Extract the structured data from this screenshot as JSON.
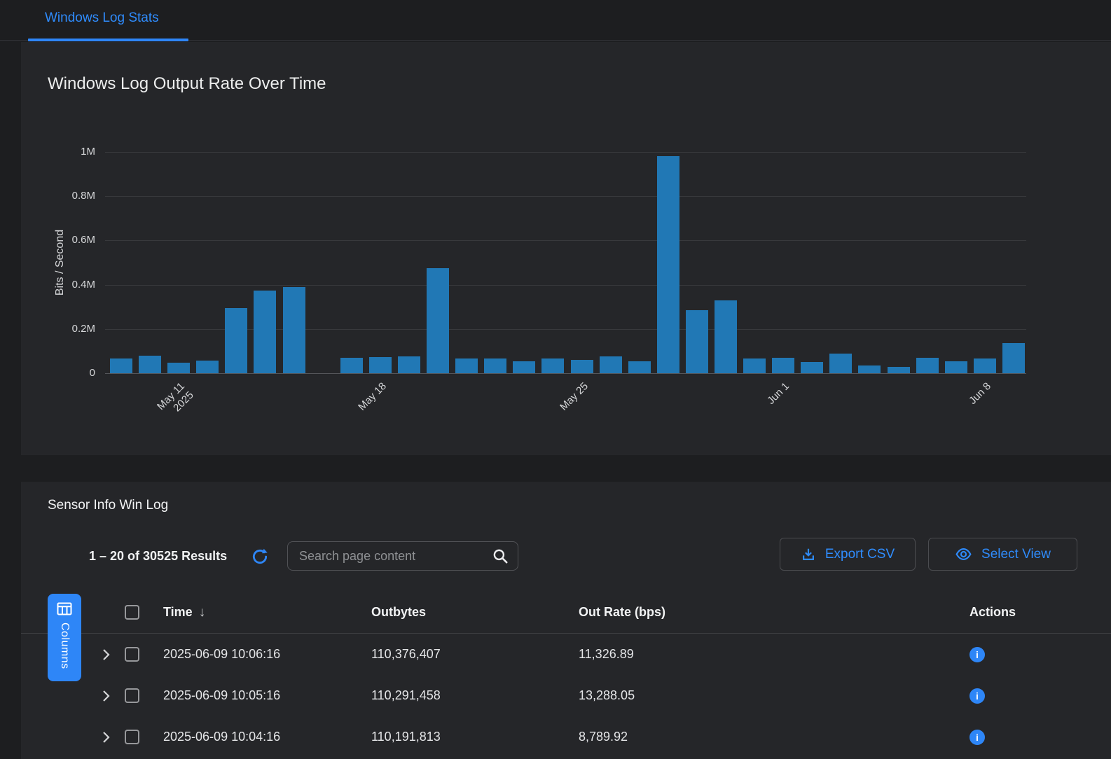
{
  "colors": {
    "accent_blue": "#2e86f7",
    "bar_blue": "#2178b5",
    "link_blue": "#2f8cfd"
  },
  "tabs": {
    "active_label": "Windows Log Stats"
  },
  "chart_data": {
    "type": "bar",
    "title": "Windows Log Output Rate Over Time",
    "xlabel": "",
    "ylabel": "Bits / Second",
    "ylim": [
      0,
      1000000
    ],
    "y_tick_labels": [
      "0",
      "0.2M",
      "0.4M",
      "0.6M",
      "0.8M",
      "1M"
    ],
    "grid": true,
    "legend": false,
    "bar_color": "#2178b5",
    "categories": [
      "May 9",
      "May 10",
      "May 11",
      "May 12",
      "May 13",
      "May 14",
      "May 15",
      "May 16",
      "May 17",
      "May 18",
      "May 19",
      "May 20",
      "May 21",
      "May 22",
      "May 23",
      "May 24",
      "May 25",
      "May 26",
      "May 27",
      "May 28",
      "May 29",
      "May 30",
      "May 31",
      "Jun 1",
      "Jun 2",
      "Jun 3",
      "Jun 4",
      "Jun 5",
      "Jun 6",
      "Jun 7",
      "Jun 8",
      "Jun 9"
    ],
    "values": [
      68000,
      78000,
      48000,
      58000,
      295000,
      375000,
      390000,
      null,
      70000,
      72000,
      75000,
      475000,
      68000,
      65000,
      55000,
      65000,
      60000,
      75000,
      55000,
      980000,
      285000,
      330000,
      65000,
      70000,
      50000,
      90000,
      35000,
      30000,
      70000,
      55000,
      65000,
      135000
    ],
    "x_ticks": [
      {
        "index": 2,
        "label": "May 11",
        "sublabel": "2025"
      },
      {
        "index": 9,
        "label": "May 18",
        "sublabel": ""
      },
      {
        "index": 16,
        "label": "May 25",
        "sublabel": ""
      },
      {
        "index": 23,
        "label": "Jun 1",
        "sublabel": ""
      },
      {
        "index": 30,
        "label": "Jun 8",
        "sublabel": ""
      }
    ]
  },
  "table_section": {
    "title": "Sensor Info Win Log",
    "results_summary": "1 – 20 of 30525 Results",
    "search": {
      "placeholder": "Search page content",
      "value": ""
    },
    "buttons": {
      "export_csv": "Export CSV",
      "select_view": "Select View",
      "columns": "Columns"
    },
    "header": {
      "time": "Time",
      "sort_indicator": "↓",
      "outbytes": "Outbytes",
      "out_rate": "Out Rate (bps)",
      "actions": "Actions"
    },
    "rows": [
      {
        "time": "2025-06-09 10:06:16",
        "outbytes": "110,376,407",
        "out_rate": "11,326.89"
      },
      {
        "time": "2025-06-09 10:05:16",
        "outbytes": "110,291,458",
        "out_rate": "13,288.05"
      },
      {
        "time": "2025-06-09 10:04:16",
        "outbytes": "110,191,813",
        "out_rate": "8,789.92"
      }
    ]
  }
}
